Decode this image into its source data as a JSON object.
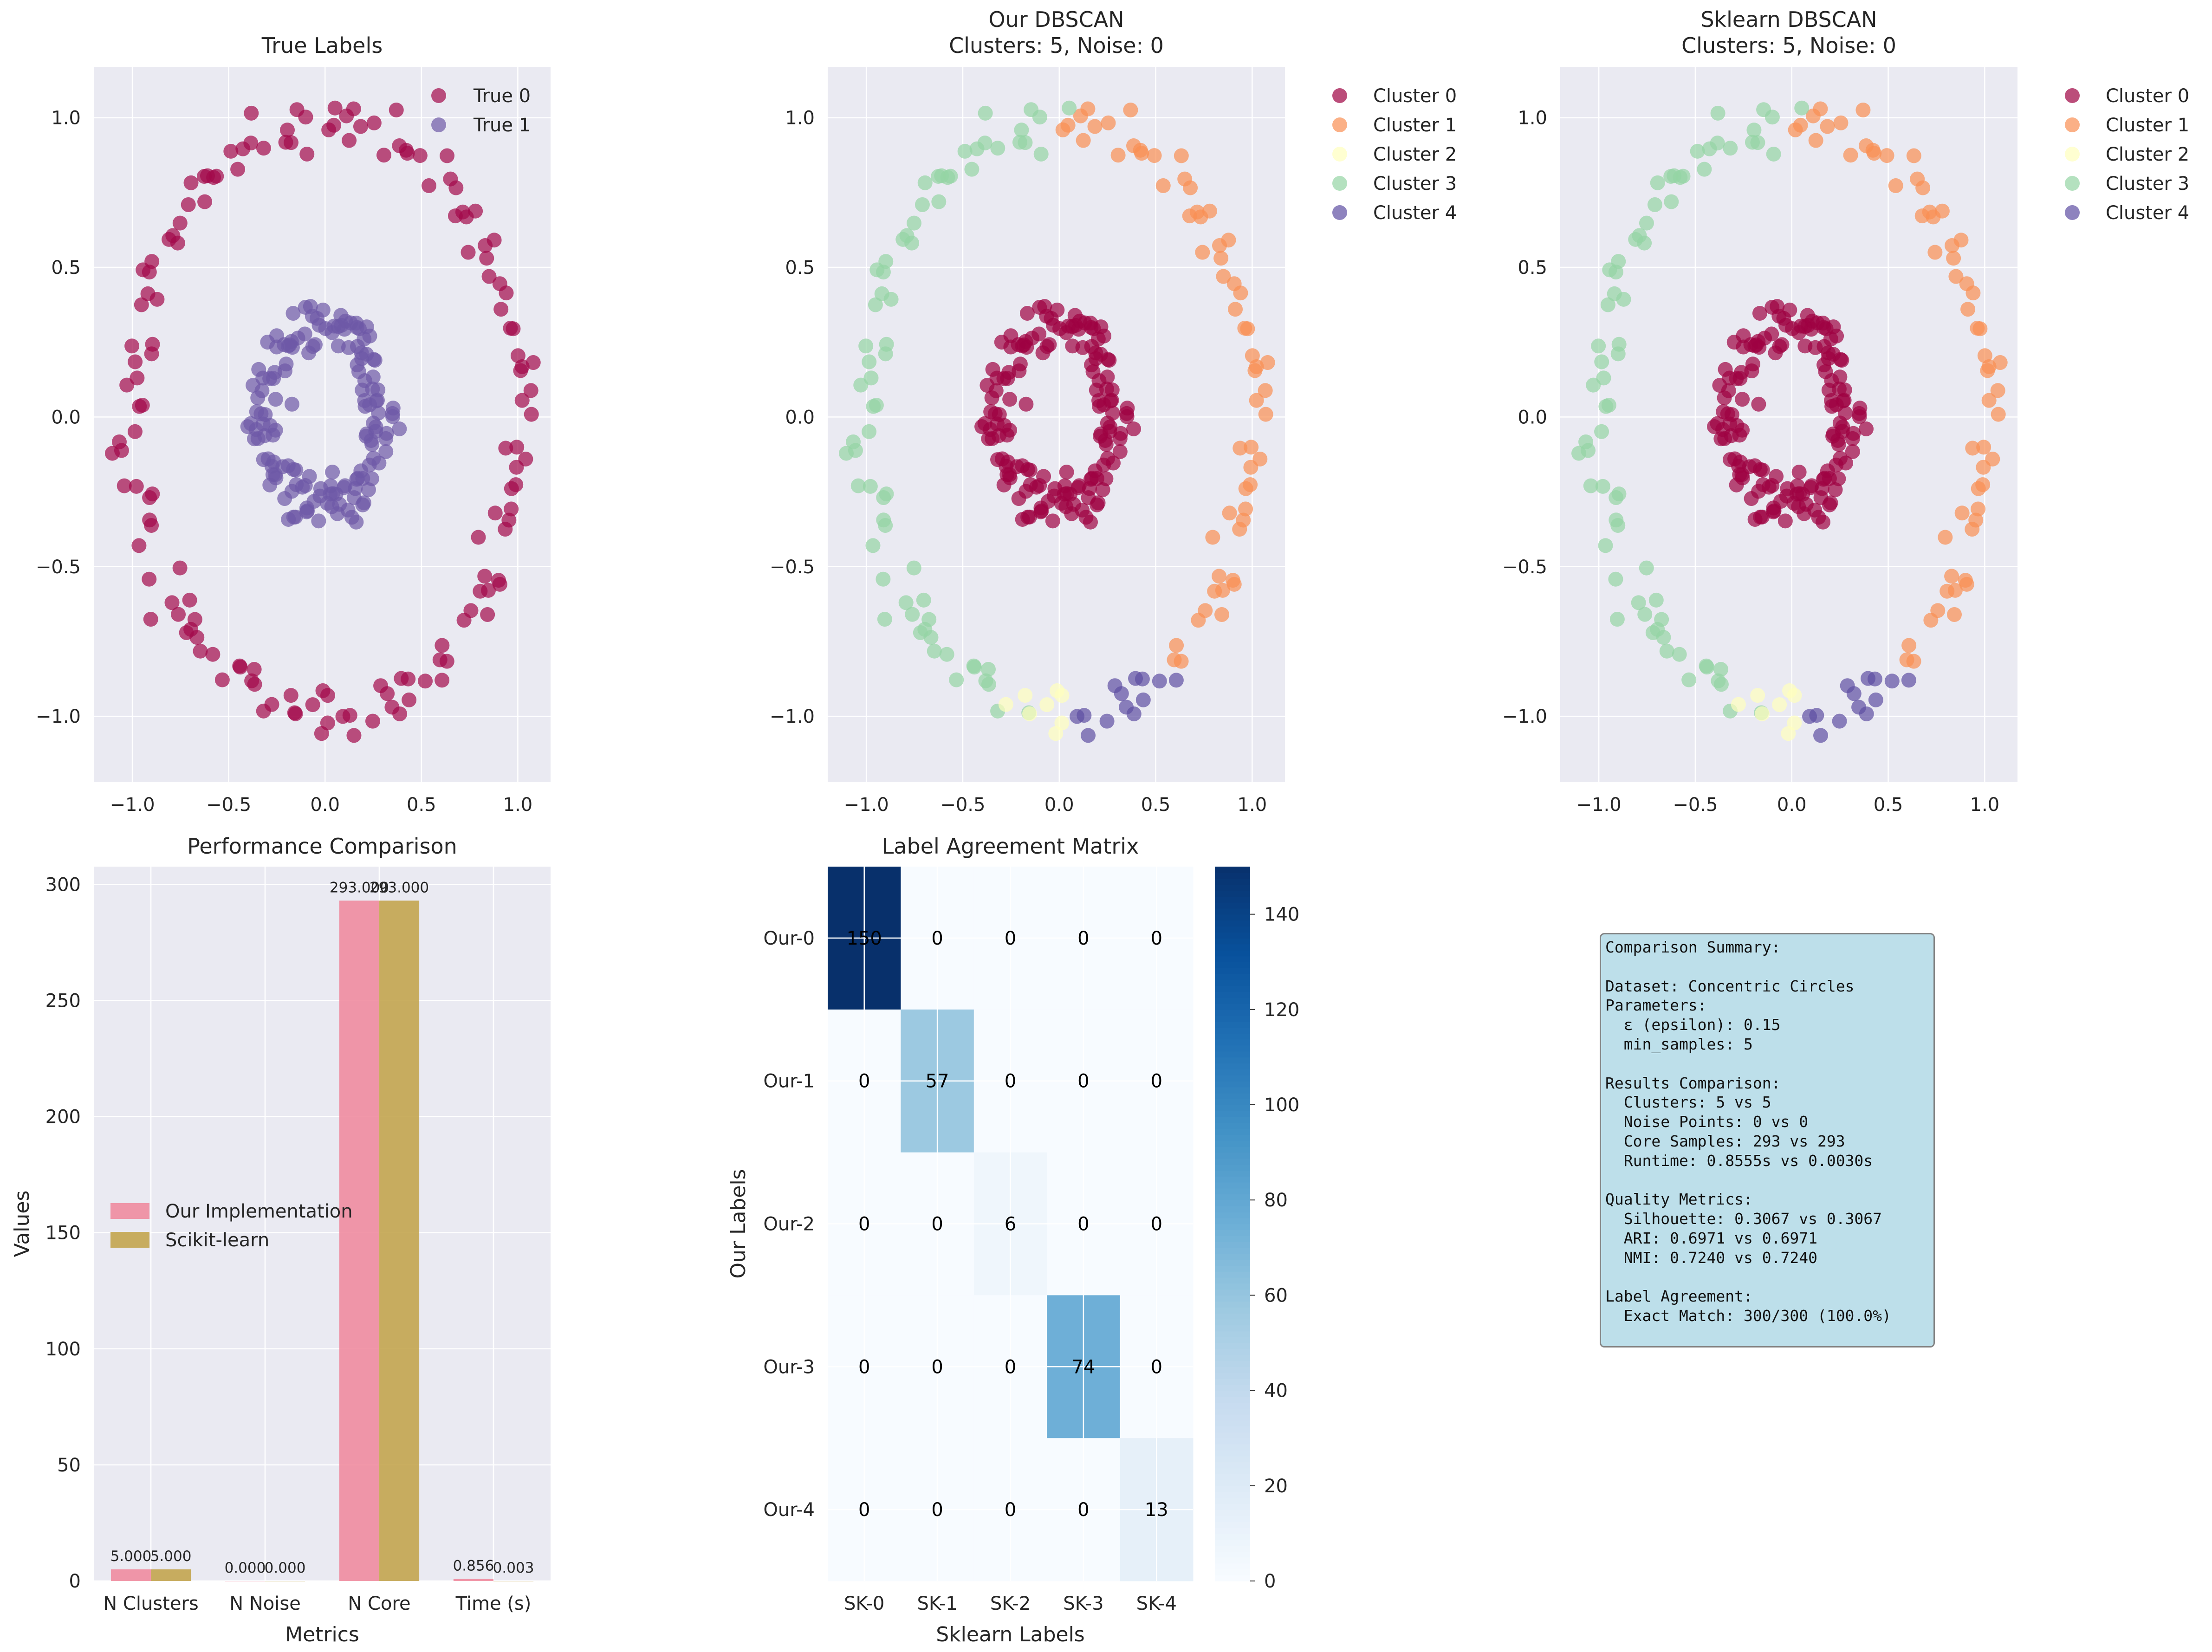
{
  "colors": {
    "panel_bg": "#eaeaf2",
    "grid": "#ffffff",
    "true_0": "#a2094a",
    "true_1": "#6d59a6",
    "cluster_palette": [
      "#9e0142",
      "#f98e52",
      "#ffffbe",
      "#94d4a4",
      "#5e4fa2"
    ],
    "bar_ours": "#f08ca0",
    "bar_sklearn": "#c3a54f"
  },
  "panels": {
    "true_labels": {
      "title": "True Labels",
      "legend": [
        "True 0",
        "True 1"
      ]
    },
    "our_dbscan": {
      "title_line1": "Our DBSCAN",
      "title_line2": "Clusters: 5, Noise: 0",
      "legend": [
        "Cluster 0",
        "Cluster 1",
        "Cluster 2",
        "Cluster 3",
        "Cluster 4"
      ]
    },
    "sklearn_dbscan": {
      "title_line1": "Sklearn DBSCAN",
      "title_line2": "Clusters: 5, Noise: 0",
      "legend": [
        "Cluster 0",
        "Cluster 1",
        "Cluster 2",
        "Cluster 3",
        "Cluster 4"
      ]
    },
    "performance": {
      "title": "Performance Comparison",
      "xlabel": "Metrics",
      "ylabel": "Values",
      "legend": [
        "Our Implementation",
        "Scikit-learn"
      ]
    },
    "agreement": {
      "title": "Label Agreement Matrix",
      "xlabel": "Sklearn Labels",
      "ylabel": "Our Labels"
    },
    "summary": {
      "text": "Comparison Summary:\n\nDataset: Concentric Circles\nParameters:\n  ε (epsilon): 0.15\n  min_samples: 5\n\nResults Comparison:\n  Clusters: 5 vs 5\n  Noise Points: 0 vs 0\n  Core Samples: 293 vs 293\n  Runtime: 0.8555s vs 0.0030s\n\nQuality Metrics:\n  Silhouette: 0.3067 vs 0.3067\n  ARI: 0.6971 vs 0.6971\n  NMI: 0.7240 vs 0.7240\n\nLabel Agreement:\n  Exact Match: 300/300 (100.0%)"
    }
  },
  "chart_data": [
    {
      "type": "scatter",
      "title": "True Labels",
      "xlim": [
        -1.2,
        1.17
      ],
      "ylim": [
        -1.22,
        1.17
      ],
      "xticks": [
        -1.0,
        -0.5,
        0.0,
        0.5,
        1.0
      ],
      "yticks": [
        -1.0,
        -0.5,
        0.0,
        0.5,
        1.0
      ],
      "tick_labels": [
        "−1.0",
        "−0.5",
        "0.0",
        "0.5",
        "1.0"
      ],
      "grid": true,
      "legend_position": "top-right",
      "series": [
        {
          "name": "True 0",
          "n_points": 150,
          "shape": "circle",
          "radius": 1.0
        },
        {
          "name": "True 1",
          "n_points": 150,
          "shape": "circle",
          "radius": 0.3
        }
      ]
    },
    {
      "type": "scatter",
      "title": "Our DBSCAN\nClusters: 5, Noise: 0",
      "xlim": [
        -1.2,
        1.17
      ],
      "ylim": [
        -1.22,
        1.17
      ],
      "xticks": [
        -1.0,
        -0.5,
        0.0,
        0.5,
        1.0
      ],
      "yticks": [
        -1.0,
        -0.5,
        0.0,
        0.5,
        1.0
      ],
      "tick_labels": [
        "−1.0",
        "−0.5",
        "0.0",
        "0.5",
        "1.0"
      ],
      "grid": true,
      "legend_position": "outside-right",
      "series": [
        {
          "name": "Cluster 0",
          "n_points": 150
        },
        {
          "name": "Cluster 1",
          "n_points": 57
        },
        {
          "name": "Cluster 2",
          "n_points": 6
        },
        {
          "name": "Cluster 3",
          "n_points": 74
        },
        {
          "name": "Cluster 4",
          "n_points": 13
        }
      ]
    },
    {
      "type": "scatter",
      "title": "Sklearn DBSCAN\nClusters: 5, Noise: 0",
      "xlim": [
        -1.2,
        1.17
      ],
      "ylim": [
        -1.22,
        1.17
      ],
      "xticks": [
        -1.0,
        -0.5,
        0.0,
        0.5,
        1.0
      ],
      "yticks": [
        -1.0,
        -0.5,
        0.0,
        0.5,
        1.0
      ],
      "tick_labels": [
        "−1.0",
        "−0.5",
        "0.0",
        "0.5",
        "1.0"
      ],
      "grid": true,
      "legend_position": "outside-right",
      "series": [
        {
          "name": "Cluster 0",
          "n_points": 150
        },
        {
          "name": "Cluster 1",
          "n_points": 57
        },
        {
          "name": "Cluster 2",
          "n_points": 6
        },
        {
          "name": "Cluster 3",
          "n_points": 74
        },
        {
          "name": "Cluster 4",
          "n_points": 13
        }
      ]
    },
    {
      "type": "bar",
      "title": "Performance Comparison",
      "categories": [
        "N Clusters",
        "N Noise",
        "N Core",
        "Time (s)"
      ],
      "series": [
        {
          "name": "Our Implementation",
          "values": [
            5,
            0,
            293,
            0.856
          ],
          "labels": [
            "5.000",
            "0.000",
            "293.000",
            "0.856"
          ]
        },
        {
          "name": "Scikit-learn",
          "values": [
            5,
            0,
            293,
            0.003
          ],
          "labels": [
            "5.000",
            "0.000",
            "293.000",
            "0.003"
          ]
        }
      ],
      "xlabel": "Metrics",
      "ylabel": "Values",
      "ylim": [
        0,
        307.65
      ],
      "yticks": [
        0,
        50,
        100,
        150,
        200,
        250,
        300
      ],
      "grid": true,
      "legend_position": "center-left"
    },
    {
      "type": "heatmap",
      "title": "Label Agreement Matrix",
      "x_categories": [
        "SK-0",
        "SK-1",
        "SK-2",
        "SK-3",
        "SK-4"
      ],
      "y_categories": [
        "Our-0",
        "Our-1",
        "Our-2",
        "Our-3",
        "Our-4"
      ],
      "matrix": [
        [
          150,
          0,
          0,
          0,
          0
        ],
        [
          0,
          57,
          0,
          0,
          0
        ],
        [
          0,
          0,
          6,
          0,
          0
        ],
        [
          0,
          0,
          0,
          74,
          0
        ],
        [
          0,
          0,
          0,
          0,
          13
        ]
      ],
      "xlabel": "Sklearn Labels",
      "ylabel": "Our Labels",
      "colorbar": {
        "min": 0,
        "max": 150,
        "ticks": [
          0,
          20,
          40,
          60,
          80,
          100,
          120,
          140
        ]
      },
      "colormap": "Blues"
    }
  ]
}
